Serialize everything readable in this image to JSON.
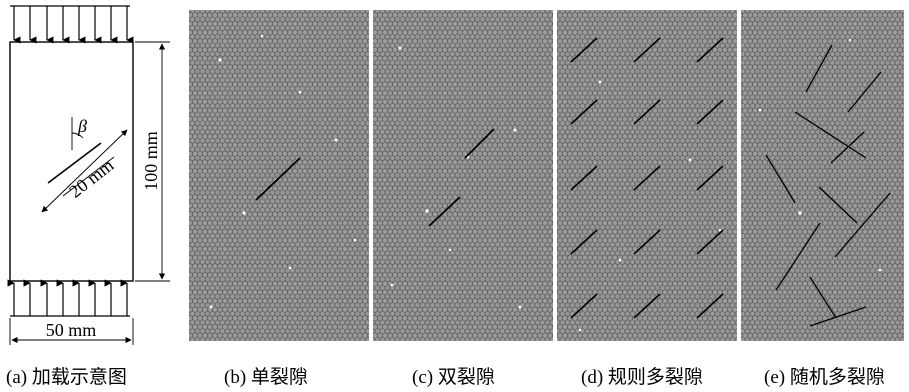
{
  "panels": [
    {
      "id": "a",
      "caption": "(a) 加载示意图"
    },
    {
      "id": "b",
      "caption": "(b) 单裂隙"
    },
    {
      "id": "c",
      "caption": "(c) 双裂隙"
    },
    {
      "id": "d",
      "caption": "(d) 规则多裂隙"
    },
    {
      "id": "e",
      "caption": "(e) 随机多裂隙"
    }
  ],
  "schematic": {
    "width_label": "50 mm",
    "height_label": "100 mm",
    "crack_label": "20 mm",
    "angle_label": "β",
    "top_arrows": 8,
    "bottom_arrows": 8
  },
  "colors": {
    "particle_fill": "#8c8c8c",
    "particle_edge": "#5e5e5e",
    "crack": "#000000",
    "speck": "#ffffff"
  }
}
